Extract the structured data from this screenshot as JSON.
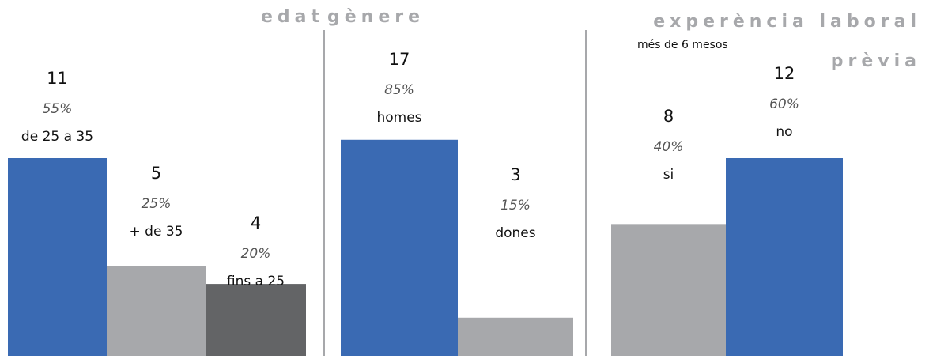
{
  "chart_data": [
    {
      "type": "bar",
      "title": "edat",
      "categories": [
        "de 25 a 35",
        "+ de 35",
        "fins a 25"
      ],
      "values": [
        11,
        5,
        4
      ],
      "percent_labels": [
        "55%",
        "25%",
        "20%"
      ],
      "colors": [
        "#3a6ab3",
        "#a7a8ab",
        "#636466"
      ],
      "ylim": [
        0,
        19.8
      ]
    },
    {
      "type": "bar",
      "title": "gènere",
      "categories": [
        "homes",
        "dones"
      ],
      "values": [
        17,
        3
      ],
      "percent_labels": [
        "85%",
        "15%"
      ],
      "colors": [
        "#3a6ab3",
        "#a7a8ab"
      ],
      "ylim": [
        0,
        28
      ]
    },
    {
      "type": "bar",
      "title": [
        "experència laboral",
        "prèvia"
      ],
      "subtitle": "més de 6 mesos",
      "categories": [
        "si",
        "no"
      ],
      "values": [
        8,
        12
      ],
      "percent_labels": [
        "40%",
        "60%"
      ],
      "colors": [
        "#a7a8ab",
        "#3a6ab3"
      ],
      "ylim": [
        0,
        21.6
      ]
    }
  ]
}
